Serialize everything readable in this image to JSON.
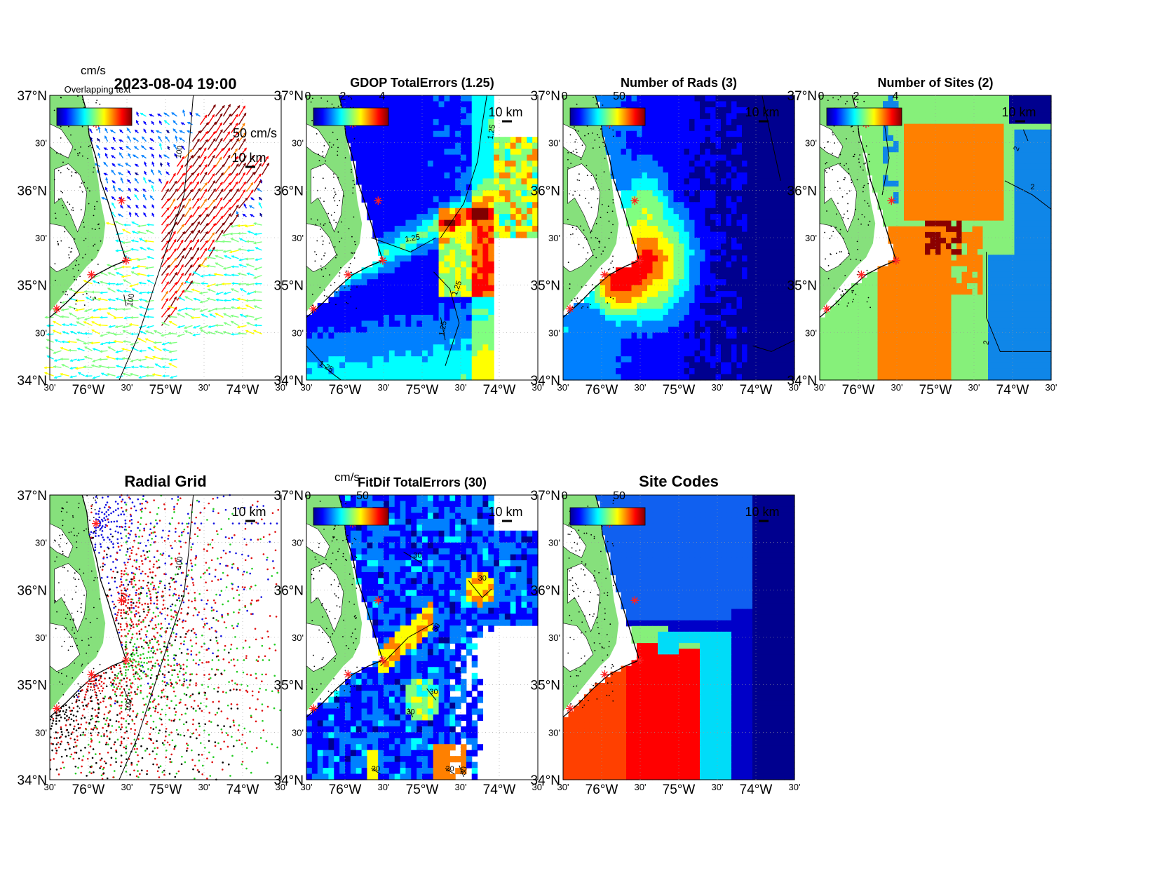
{
  "figure": {
    "timestamp": "2023-08-04 19:00",
    "overlap_text": "Overlapping text"
  },
  "axes_labels": {
    "y": [
      "37°N",
      "30'",
      "36°N",
      "30'",
      "35°N",
      "30'",
      "34°N"
    ],
    "x": [
      "30'",
      "76°W",
      "30'",
      "75°W",
      "30'",
      "74°W",
      "30'"
    ],
    "scale_bar": "10 km"
  },
  "panels": [
    {
      "key": "vectors",
      "title": "",
      "colorbar_unit": "cm/s",
      "colorbar_ticks": [],
      "vector_scale": "50 cm/s",
      "contours": [
        "100",
        "100"
      ],
      "site_markers": 5
    },
    {
      "key": "gdop",
      "title": "GDOP TotalErrors (1.25)",
      "colorbar_unit": "",
      "colorbar_ticks": [
        "0",
        "2",
        "4"
      ],
      "contours": [
        "1.25",
        "1.25",
        "1.25",
        "1.25",
        "1.25"
      ],
      "site_markers": 5
    },
    {
      "key": "nrads",
      "title": "Number of Rads (3)",
      "colorbar_unit": "",
      "colorbar_ticks": [
        "0",
        "50"
      ],
      "contours": [],
      "site_markers": 5
    },
    {
      "key": "nsites",
      "title": "Number of Sites (2)",
      "colorbar_unit": "",
      "colorbar_ticks": [
        "0",
        "2",
        "4"
      ],
      "contours": [
        "2",
        "2",
        "2",
        "2",
        "2"
      ],
      "site_markers": 5
    },
    {
      "key": "radgrid",
      "title": "Radial Grid",
      "colorbar_unit": "",
      "colorbar_ticks": [],
      "contours": [
        "100",
        "100"
      ],
      "site_markers": 5,
      "site_colors": [
        "#1010e0",
        "#e01010",
        "#22cc22",
        "#e01010",
        "#000000"
      ]
    },
    {
      "key": "fitdif",
      "title": "FitDif TotalErrors (30)",
      "colorbar_unit": "cm/s",
      "colorbar_ticks": [
        "0",
        "50"
      ],
      "contours": [
        "30",
        "30",
        "30",
        "30",
        "30",
        "30",
        "30",
        "30"
      ],
      "site_markers": 5
    },
    {
      "key": "sitecodes",
      "title": "Site Codes",
      "colorbar_unit": "",
      "colorbar_ticks": [
        "0",
        "50"
      ],
      "contours": [],
      "site_markers": 5
    }
  ],
  "colors": {
    "land": "#86e07c",
    "coast": "#000000",
    "site_marker": "#ff2020",
    "jet": [
      "#00008f",
      "#0000ff",
      "#0080ff",
      "#00ffff",
      "#80ff80",
      "#ffff00",
      "#ff8000",
      "#ff0000",
      "#800000"
    ],
    "sites_levels": {
      "2": "#86f07a",
      "3": "#ff8000",
      "4": "#8b0000",
      "1": "#0f86e8",
      "0": "#00008f"
    },
    "site_codes": [
      "#0000c8",
      "#1060f0",
      "#00dcf8",
      "#ff0000",
      "#ff4000",
      "#86f07a",
      "#00008f"
    ]
  }
}
